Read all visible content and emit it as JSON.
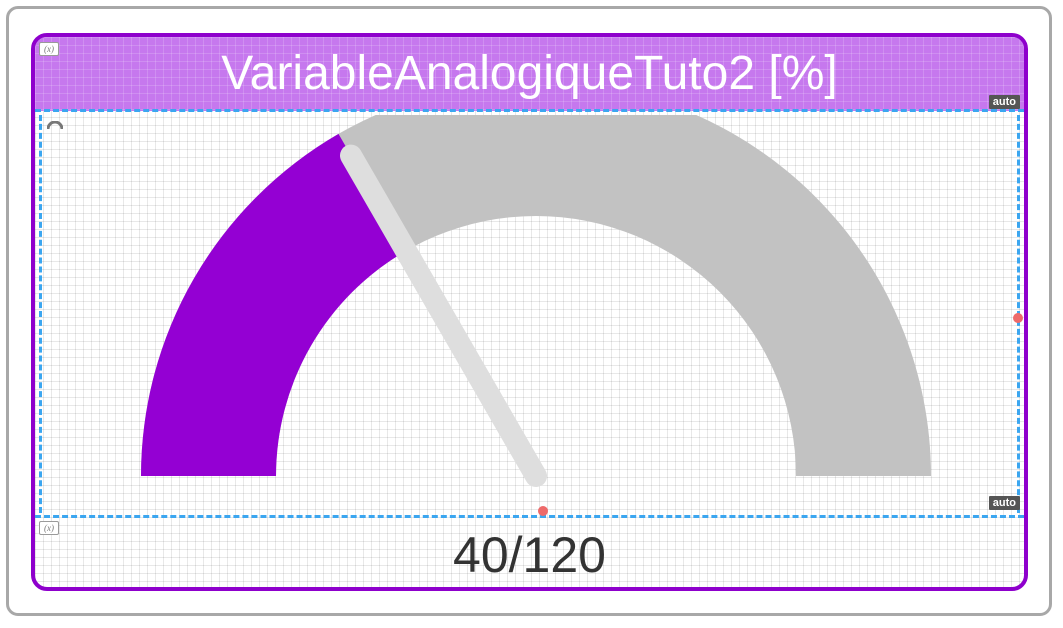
{
  "widget": {
    "title": "VariableAnalogiqueTuto2 [%]",
    "value_label": "40/120",
    "var_badge": "(x)",
    "auto_badge_top": "auto",
    "auto_badge_bottom": "auto"
  },
  "gauge": {
    "value": 40,
    "min": 0,
    "max": 120,
    "fill_color": "#9400d3",
    "track_color": "#c2c2c2",
    "needle_color": "#dedede",
    "frame_color": "#8e00cc",
    "title_bg": "#c678ee",
    "guide_color": "#3ba6f0"
  }
}
